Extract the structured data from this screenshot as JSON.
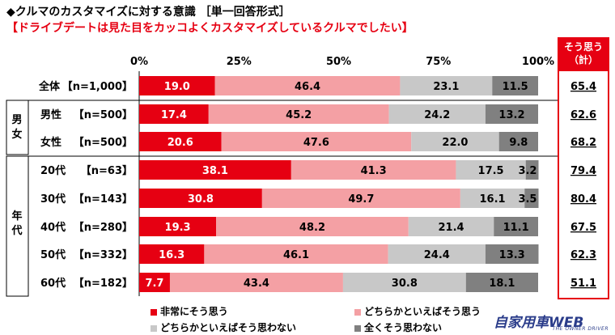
{
  "title": "◆クルマのカスタマイズに対する意識 ［単一回答形式］",
  "subtitle": "【ドライブデートは見た目をカッコよくカスタマイズしているクルマでしたい】",
  "summary_header": [
    "そう思う",
    "（計）"
  ],
  "group_labels": {
    "gender": "男女",
    "age": "年代"
  },
  "legend": [
    {
      "label": "非常にそう思う",
      "color": "#e60012"
    },
    {
      "label": "どちらかといえばそう思う",
      "color": "#f4a0a4"
    },
    {
      "label": "どちらかといえばそう思わない",
      "color": "#c8c8c8"
    },
    {
      "label": "全くそう思わない",
      "color": "#808080"
    }
  ],
  "logo": {
    "main": "自家用車WEB",
    "sub": "THE OWNER DRIVER"
  },
  "chart_data": {
    "type": "bar",
    "orientation": "horizontal",
    "stacked": true,
    "x_ticks": [
      "0%",
      "25%",
      "50%",
      "75%",
      "100%"
    ],
    "xlim": [
      0,
      100
    ],
    "categories": [
      {
        "label": "全体",
        "n": "【n=1,000】",
        "summary": "65.4"
      },
      {
        "label": "男性",
        "n": "【n=500】",
        "summary": "62.6"
      },
      {
        "label": "女性",
        "n": "【n=500】",
        "summary": "68.2"
      },
      {
        "label": "20代",
        "n": "【n=63】",
        "summary": "79.4"
      },
      {
        "label": "30代",
        "n": "【n=143】",
        "summary": "80.4"
      },
      {
        "label": "40代",
        "n": "【n=280】",
        "summary": "67.5"
      },
      {
        "label": "50代",
        "n": "【n=332】",
        "summary": "62.3"
      },
      {
        "label": "60代",
        "n": "【n=182】",
        "summary": "51.1"
      }
    ],
    "series": [
      {
        "name": "非常にそう思う",
        "color": "#e60012",
        "label_color": "#ffffff",
        "values": [
          19.0,
          17.4,
          20.6,
          38.1,
          30.8,
          19.3,
          16.3,
          7.7
        ]
      },
      {
        "name": "どちらかといえばそう思う",
        "color": "#f4a0a4",
        "label_color": "#000000",
        "values": [
          46.4,
          45.2,
          47.6,
          41.3,
          49.7,
          48.2,
          46.1,
          43.4
        ]
      },
      {
        "name": "どちらかといえばそう思わない",
        "color": "#c8c8c8",
        "label_color": "#000000",
        "values": [
          23.1,
          24.2,
          22.0,
          17.5,
          16.1,
          21.4,
          24.4,
          30.8
        ]
      },
      {
        "name": "全くそう思わない",
        "color": "#808080",
        "label_color": "#000000",
        "values": [
          11.5,
          13.2,
          9.8,
          3.2,
          3.5,
          11.1,
          13.3,
          18.1
        ]
      }
    ]
  }
}
